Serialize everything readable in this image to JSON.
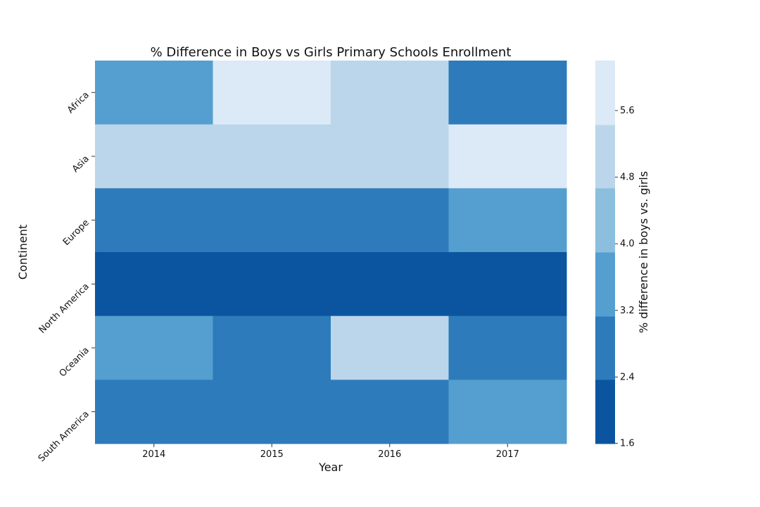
{
  "chart_data": {
    "type": "heatmap",
    "title": "% Difference in Boys vs Girls Primary Schools Enrollment",
    "xlabel": "Year",
    "ylabel": "Continent",
    "x": [
      "2014",
      "2015",
      "2016",
      "2017"
    ],
    "y": [
      "Africa",
      "Asia",
      "Europe",
      "North America",
      "Oceania",
      "South America"
    ],
    "values": [
      [
        3.6,
        5.8,
        5.0,
        2.8
      ],
      [
        5.0,
        5.0,
        5.0,
        5.8
      ],
      [
        2.8,
        2.8,
        2.8,
        3.6
      ],
      [
        2.0,
        2.0,
        2.0,
        2.0
      ],
      [
        3.6,
        2.8,
        5.0,
        2.8
      ],
      [
        2.8,
        2.8,
        2.8,
        3.6
      ]
    ],
    "colorbar": {
      "label": "% difference in boys vs. girls",
      "range": [
        1.6,
        6.2
      ],
      "ticks": [
        "1.6",
        "2.4",
        "3.2",
        "4.0",
        "4.8",
        "5.6"
      ],
      "bins": [
        {
          "from": 1.6,
          "to": 2.37,
          "color": "#0b55a0"
        },
        {
          "from": 2.37,
          "to": 3.13,
          "color": "#2d7bbb"
        },
        {
          "from": 3.13,
          "to": 3.9,
          "color": "#549fcf"
        },
        {
          "from": 3.9,
          "to": 4.67,
          "color": "#8bbfdd"
        },
        {
          "from": 4.67,
          "to": 5.43,
          "color": "#bbd6ea"
        },
        {
          "from": 5.43,
          "to": 6.2,
          "color": "#dce9f6"
        }
      ]
    }
  }
}
